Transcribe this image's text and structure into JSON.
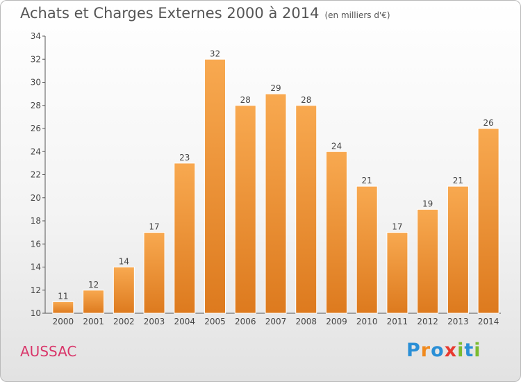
{
  "title": "Achats et Charges Externes 2000 à 2014",
  "subtitle": "(en milliers d'€)",
  "place": "AUSSAC",
  "logo": {
    "letters": [
      "P",
      "r",
      "o",
      "x",
      "i",
      "t",
      "i"
    ],
    "colors": [
      "#2a8fd6",
      "#f08a1e",
      "#2a8fd6",
      "#e8392f",
      "#7bbb2f",
      "#2a8fd6",
      "#7bbb2f"
    ]
  },
  "colors": {
    "bar_light": "#f8a950",
    "bar_dark": "#dd7a1e"
  },
  "chart_data": {
    "type": "bar",
    "categories": [
      "2000",
      "2001",
      "2002",
      "2003",
      "2004",
      "2005",
      "2006",
      "2007",
      "2008",
      "2009",
      "2010",
      "2011",
      "2012",
      "2013",
      "2014"
    ],
    "values": [
      11,
      12,
      14,
      17,
      23,
      32,
      28,
      29,
      28,
      24,
      21,
      17,
      19,
      21,
      26
    ],
    "ylim": [
      10,
      34
    ],
    "yticks": [
      10,
      12,
      14,
      16,
      18,
      20,
      22,
      24,
      26,
      28,
      30,
      32,
      34
    ],
    "grid": false
  }
}
